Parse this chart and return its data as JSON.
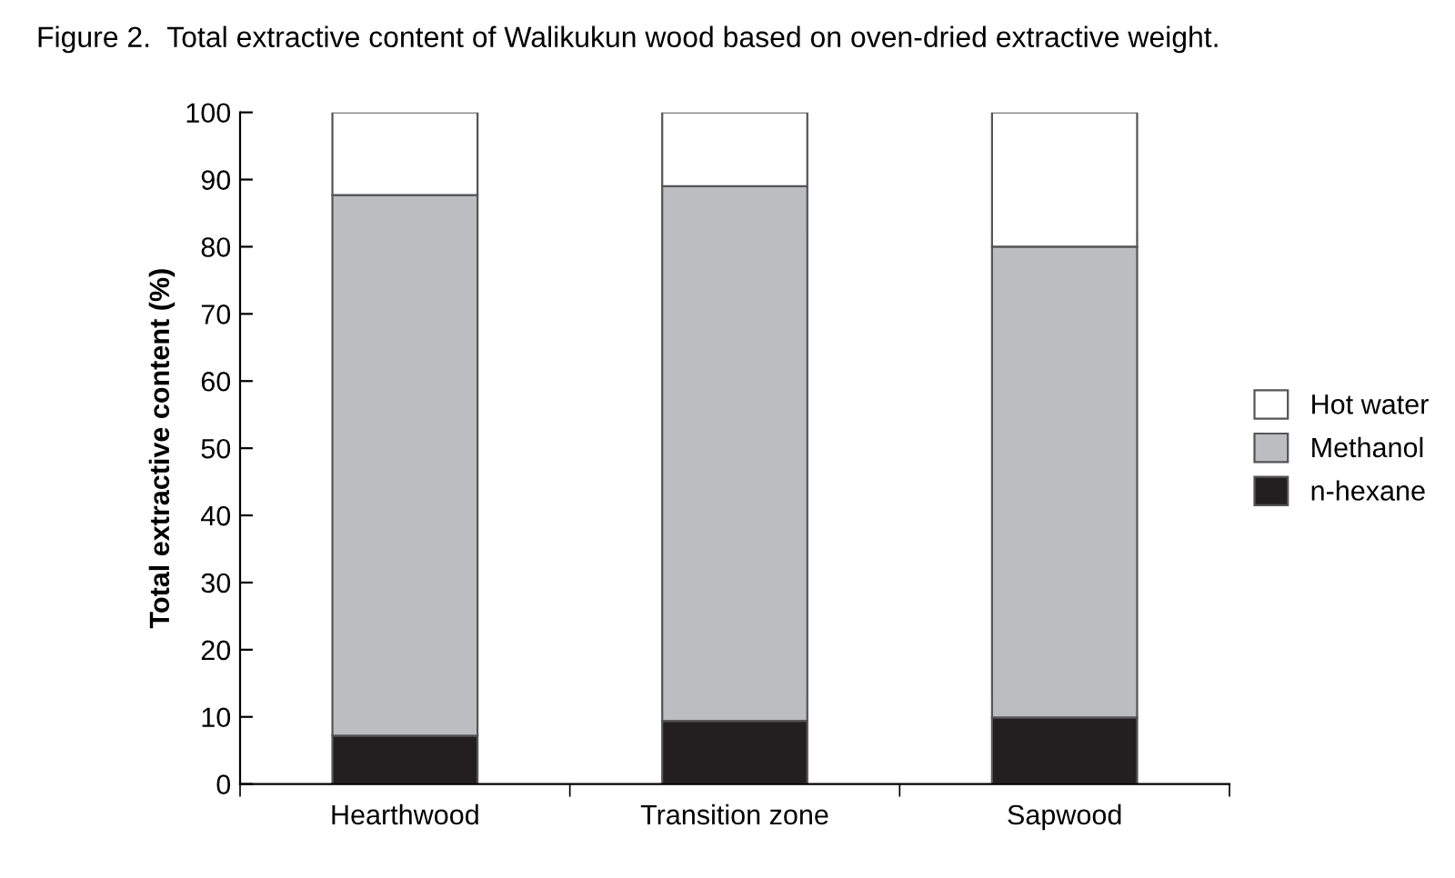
{
  "chart_data": {
    "type": "bar",
    "stacked": true,
    "title": "Figure 2.  Total extractive content of Walikukun wood based on oven-dried extractive weight.",
    "ylabel": "Total extractive content (%)",
    "categories": [
      "Hearthwood",
      "Transition zone",
      "Sapwood"
    ],
    "series": [
      {
        "name": "n-hexane",
        "color": "#231f20",
        "values": [
          7.2,
          9.4,
          9.9
        ]
      },
      {
        "name": "Methanol",
        "color": "#bcbdc0",
        "values": [
          80.5,
          79.6,
          70.1
        ]
      },
      {
        "name": "Hot water",
        "color": "#ffffff",
        "values": [
          12.3,
          11.0,
          20.0
        ]
      }
    ],
    "ylim": [
      0,
      100
    ],
    "yticks": [
      0,
      10,
      20,
      30,
      40,
      50,
      60,
      70,
      80,
      90,
      100
    ],
    "grid": false,
    "legend": "right"
  }
}
